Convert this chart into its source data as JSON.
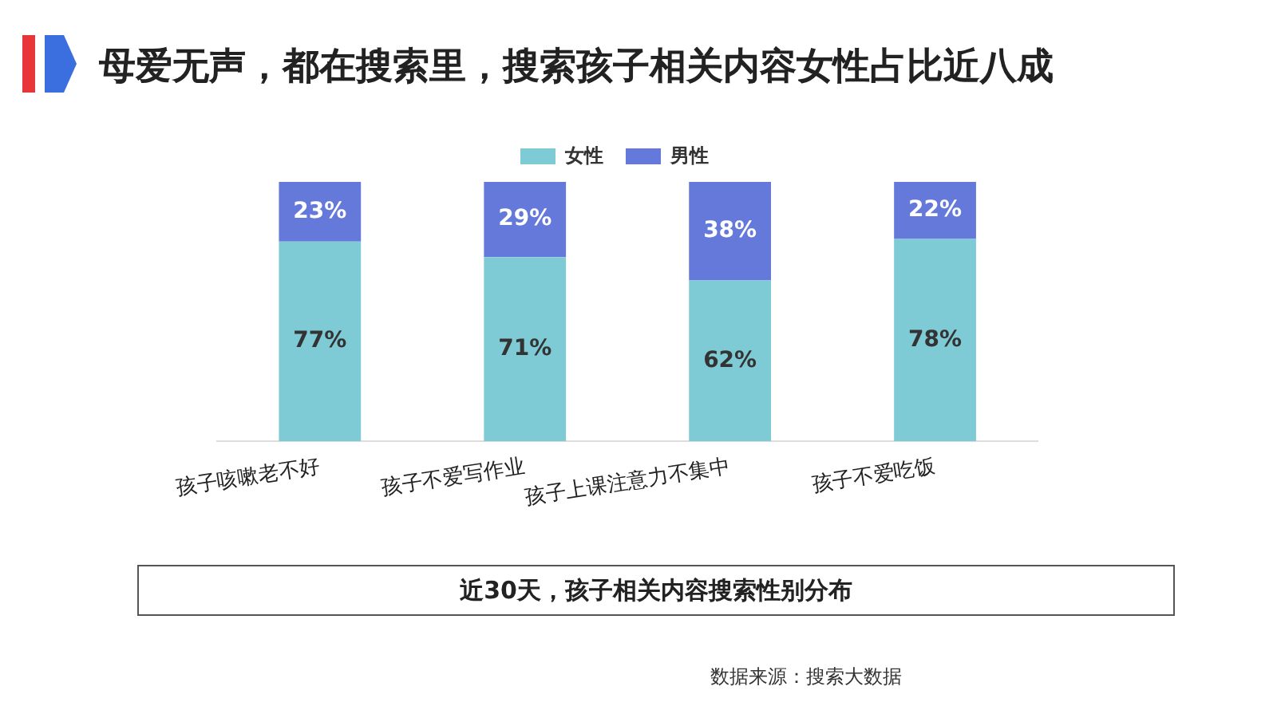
{
  "chart_data": {
    "type": "bar",
    "stacked": true,
    "title": "母爱无声，都在搜索里，搜索孩子相关内容女性占比近八成",
    "subtitle": "近30天，孩子相关内容搜索性别分布",
    "annotations": [
      "数据来源：搜索大数据"
    ],
    "legend": "top",
    "grid": false,
    "tick_labels": "x",
    "categories": [
      "孩子咳嗽老不好",
      "孩子不爱写作业",
      "孩子上课注意力不集中",
      "孩子不爱吃饭"
    ],
    "series": [
      {
        "name": "女性",
        "color": "#7ecbd6",
        "values": [
          77,
          71,
          62,
          78
        ],
        "value_labels": [
          "77%",
          "71%",
          "62%",
          "78%"
        ]
      },
      {
        "name": "男性",
        "color": "#6479d9",
        "values": [
          23,
          29,
          38,
          22
        ],
        "value_labels": [
          "23%",
          "29%",
          "38%",
          "22%"
        ]
      }
    ]
  }
}
